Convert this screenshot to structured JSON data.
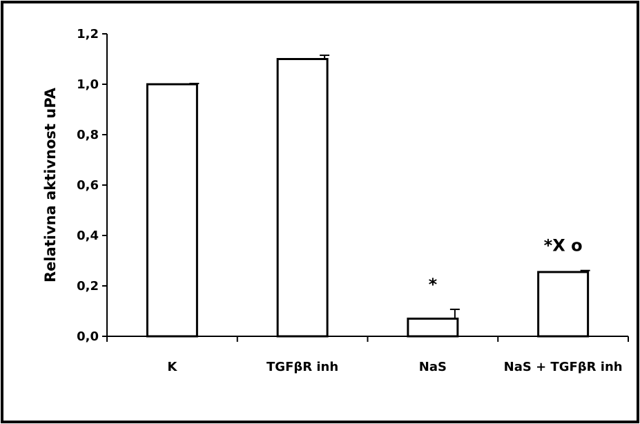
{
  "chart_data": {
    "type": "bar",
    "title": "",
    "xlabel": "",
    "ylabel": "Relativna aktivnost uPA",
    "categories": [
      "K",
      "TGFβR inh",
      "NaS",
      "NaS + TGFβR inh"
    ],
    "values": [
      1.0,
      1.1,
      0.07,
      0.255
    ],
    "errors": [
      0.003,
      0.015,
      0.037,
      0.006
    ],
    "annotations": [
      "",
      "",
      "*",
      "*X o"
    ],
    "ylim": [
      0,
      1.2
    ],
    "yticks": [
      "0,0",
      "0,2",
      "0,4",
      "0,6",
      "0,8",
      "1,0",
      "1,2"
    ],
    "yticks_values": [
      0,
      0.2,
      0.4,
      0.6,
      0.8,
      1.0,
      1.2
    ],
    "grid": false,
    "legend": "none",
    "colors": {
      "bar_fill": "#ffffff",
      "bar_stroke": "#000000",
      "frame": "#000000"
    }
  }
}
